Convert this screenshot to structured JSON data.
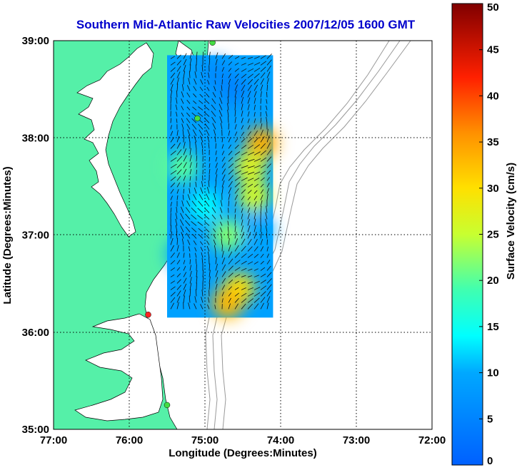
{
  "title": "Southern Mid-Atlantic Raw Velocities 2007/12/05 1600 GMT",
  "map": {
    "xlabel": "Longitude (Degrees:Minutes)",
    "ylabel": "Latitude (Degrees:Minutes)",
    "lon_range": [
      -77,
      -72
    ],
    "lat_range": [
      35,
      39
    ],
    "x_ticks": [
      {
        "value": -77,
        "label": "77:00"
      },
      {
        "value": -76,
        "label": "76:00"
      },
      {
        "value": -75,
        "label": "75:00"
      },
      {
        "value": -74,
        "label": "74:00"
      },
      {
        "value": -73,
        "label": "73:00"
      },
      {
        "value": -72,
        "label": "72:00"
      }
    ],
    "y_ticks": [
      {
        "value": 35,
        "label": "35:00"
      },
      {
        "value": 36,
        "label": "36:00"
      },
      {
        "value": 37,
        "label": "37:00"
      },
      {
        "value": 38,
        "label": "38:00"
      },
      {
        "value": 39,
        "label": "39:00"
      }
    ],
    "grid": true,
    "land_color": "#55f0a8",
    "stations": [
      {
        "lon": -74.9,
        "lat": 38.98,
        "color": "#44dd44"
      },
      {
        "lon": -75.1,
        "lat": 38.2,
        "color": "#44dd44"
      },
      {
        "lon": -75.75,
        "lat": 36.18,
        "color": "#ff2222"
      },
      {
        "lon": -75.5,
        "lat": 35.25,
        "color": "#44dd44"
      }
    ]
  },
  "colorbar": {
    "label": "Surface Velocity (cm/s)",
    "min": 0,
    "max": 50,
    "ticks": [
      "0",
      "5",
      "10",
      "15",
      "20",
      "25",
      "30",
      "35",
      "40",
      "45",
      "50"
    ]
  },
  "chart_data": {
    "type": "heatmap",
    "title": "Southern Mid-Atlantic Raw Velocities 2007/12/05 1600 GMT",
    "xlabel": "Longitude (Degrees:Minutes)",
    "ylabel": "Latitude (Degrees:Minutes)",
    "xlim": [
      -77,
      -72
    ],
    "ylim": [
      35,
      39
    ],
    "value_range": [
      0,
      50
    ],
    "value_unit": "cm/s",
    "coverage_lon": [
      -75.5,
      -74.1
    ],
    "coverage_lat": [
      36.15,
      38.85
    ],
    "regions": [
      {
        "lon": -74.85,
        "lat": 38.65,
        "speed": 6
      },
      {
        "lon": -74.6,
        "lat": 38.5,
        "speed": 5
      },
      {
        "lon": -74.9,
        "lat": 38.3,
        "speed": 8
      },
      {
        "lon": -74.25,
        "lat": 37.95,
        "speed": 34
      },
      {
        "lon": -74.4,
        "lat": 37.7,
        "speed": 27
      },
      {
        "lon": -74.35,
        "lat": 37.4,
        "speed": 26
      },
      {
        "lon": -74.7,
        "lat": 37.0,
        "speed": 22
      },
      {
        "lon": -74.3,
        "lat": 37.05,
        "speed": 10
      },
      {
        "lon": -75.3,
        "lat": 36.8,
        "speed": 9
      },
      {
        "lon": -74.55,
        "lat": 36.45,
        "speed": 30
      },
      {
        "lon": -74.7,
        "lat": 36.3,
        "speed": 33
      },
      {
        "lon": -75.3,
        "lat": 37.7,
        "speed": 20
      },
      {
        "lon": -75.0,
        "lat": 37.3,
        "speed": 14
      }
    ]
  }
}
